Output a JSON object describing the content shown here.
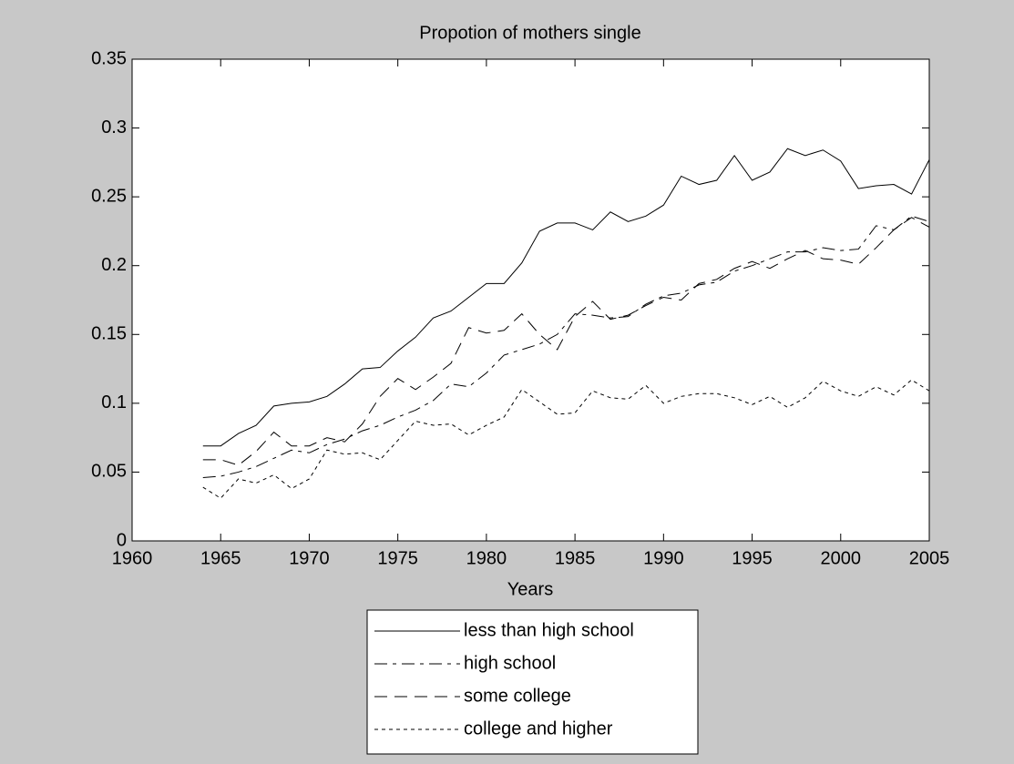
{
  "chart_data": {
    "type": "line",
    "title": "Propotion of mothers single",
    "x_label": "Years",
    "x": [
      1964,
      1965,
      1966,
      1967,
      1968,
      1969,
      1970,
      1971,
      1972,
      1973,
      1974,
      1975,
      1976,
      1977,
      1978,
      1979,
      1980,
      1981,
      1982,
      1983,
      1984,
      1985,
      1986,
      1987,
      1988,
      1989,
      1990,
      1991,
      1992,
      1993,
      1994,
      1995,
      1996,
      1997,
      1998,
      1999,
      2000,
      2001,
      2002,
      2003,
      2004,
      2005
    ],
    "series": [
      {
        "name": "less than high school",
        "color": "#000000",
        "linestyle": "-",
        "values": [
          0.069,
          0.069,
          0.078,
          0.084,
          0.098,
          0.1,
          0.101,
          0.105,
          0.114,
          0.125,
          0.126,
          0.138,
          0.148,
          0.162,
          0.167,
          0.177,
          0.187,
          0.187,
          0.202,
          0.225,
          0.231,
          0.231,
          0.226,
          0.239,
          0.232,
          0.236,
          0.244,
          0.265,
          0.259,
          0.262,
          0.28,
          0.262,
          0.268,
          0.285,
          0.28,
          0.284,
          0.276,
          0.256,
          0.258,
          0.259,
          0.252,
          0.277
        ]
      },
      {
        "name": "high school",
        "color": "#000000",
        "linestyle": "-.",
        "values": [
          0.046,
          0.047,
          0.05,
          0.054,
          0.06,
          0.066,
          0.064,
          0.07,
          0.074,
          0.08,
          0.084,
          0.09,
          0.095,
          0.102,
          0.114,
          0.112,
          0.122,
          0.135,
          0.139,
          0.143,
          0.15,
          0.165,
          0.164,
          0.162,
          0.163,
          0.172,
          0.178,
          0.18,
          0.186,
          0.188,
          0.196,
          0.2,
          0.205,
          0.21,
          0.21,
          0.213,
          0.211,
          0.212,
          0.229,
          0.226,
          0.236,
          0.232
        ]
      },
      {
        "name": "some college",
        "color": "#000000",
        "linestyle": "--",
        "values": [
          0.059,
          0.059,
          0.055,
          0.065,
          0.079,
          0.069,
          0.069,
          0.075,
          0.072,
          0.085,
          0.105,
          0.118,
          0.11,
          0.119,
          0.129,
          0.155,
          0.151,
          0.153,
          0.165,
          0.15,
          0.139,
          0.163,
          0.174,
          0.161,
          0.164,
          0.171,
          0.177,
          0.175,
          0.187,
          0.19,
          0.198,
          0.203,
          0.198,
          0.205,
          0.211,
          0.205,
          0.204,
          0.201,
          0.213,
          0.226,
          0.235,
          0.228
        ]
      },
      {
        "name": "college and higher",
        "color": "#000000",
        "linestyle": ":",
        "values": [
          0.039,
          0.031,
          0.045,
          0.042,
          0.048,
          0.038,
          0.045,
          0.066,
          0.063,
          0.064,
          0.059,
          0.073,
          0.087,
          0.084,
          0.085,
          0.077,
          0.084,
          0.09,
          0.11,
          0.101,
          0.092,
          0.093,
          0.109,
          0.104,
          0.103,
          0.113,
          0.1,
          0.105,
          0.107,
          0.107,
          0.104,
          0.099,
          0.105,
          0.097,
          0.104,
          0.116,
          0.109,
          0.105,
          0.112,
          0.106,
          0.117,
          0.109
        ]
      }
    ],
    "xlim": [
      1960,
      2005
    ],
    "xticks": [
      1960,
      1965,
      1970,
      1975,
      1980,
      1985,
      1990,
      1995,
      2000,
      2005
    ],
    "ylim": [
      0,
      0.35
    ],
    "yticks": [
      0,
      0.05,
      0.1,
      0.15,
      0.2,
      0.25,
      0.3,
      0.35
    ],
    "grid": false,
    "legend_position": "bottom"
  }
}
